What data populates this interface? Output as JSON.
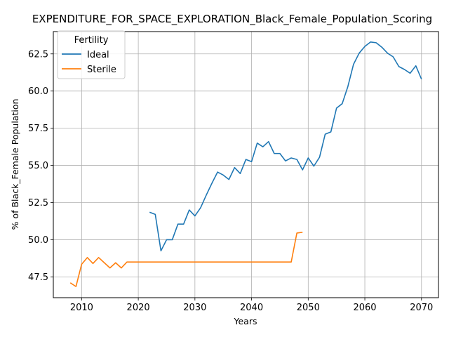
{
  "chart_data": {
    "type": "line",
    "title": "EXPENDITURE_FOR_SPACE_EXPLORATION_Black_Female_Population_Scoring",
    "xlabel": "Years",
    "ylabel": "% of Black_Female Population",
    "xlim": [
      2005,
      2073
    ],
    "ylim": [
      46.1,
      64.0
    ],
    "xticks": [
      2010,
      2020,
      2030,
      2040,
      2050,
      2060,
      2070
    ],
    "yticks": [
      47.5,
      50.0,
      52.5,
      55.0,
      57.5,
      60.0,
      62.5
    ],
    "xtick_labels": [
      "2010",
      "2020",
      "2030",
      "2040",
      "2050",
      "2060",
      "2070"
    ],
    "ytick_labels": [
      "47.5",
      "50.0",
      "52.5",
      "55.0",
      "57.5",
      "60.0",
      "62.5"
    ],
    "grid": true,
    "legend": {
      "title": "Fertility",
      "position": "top-left"
    },
    "series": [
      {
        "name": "Ideal",
        "color": "#1f77b4",
        "x": [
          2022,
          2023,
          2024,
          2025,
          2026,
          2027,
          2028,
          2029,
          2030,
          2031,
          2032,
          2033,
          2034,
          2035,
          2036,
          2037,
          2038,
          2039,
          2040,
          2041,
          2042,
          2043,
          2044,
          2045,
          2046,
          2047,
          2048,
          2049,
          2050,
          2051,
          2052,
          2053,
          2054,
          2055,
          2056,
          2057,
          2058,
          2059,
          2060,
          2061,
          2062,
          2063,
          2064,
          2065,
          2066,
          2067,
          2068,
          2069,
          2070
        ],
        "y": [
          51.85,
          51.7,
          49.25,
          50.0,
          50.0,
          51.05,
          51.05,
          52.0,
          51.6,
          52.15,
          53.0,
          53.8,
          54.55,
          54.35,
          54.05,
          54.85,
          54.45,
          55.4,
          55.25,
          56.5,
          56.25,
          56.6,
          55.8,
          55.8,
          55.3,
          55.5,
          55.4,
          54.7,
          55.5,
          54.95,
          55.55,
          57.1,
          57.25,
          58.85,
          59.15,
          60.3,
          61.8,
          62.55,
          63.0,
          63.3,
          63.25,
          62.95,
          62.55,
          62.3,
          61.65,
          61.45,
          61.2,
          61.7,
          60.8
        ]
      },
      {
        "name": "Sterile",
        "color": "#ff7f0e",
        "x": [
          2008,
          2009,
          2010,
          2011,
          2012,
          2013,
          2014,
          2015,
          2016,
          2017,
          2018,
          2019,
          2020,
          2021,
          2022,
          2023,
          2024,
          2025,
          2026,
          2027,
          2028,
          2029,
          2030,
          2031,
          2032,
          2033,
          2034,
          2035,
          2036,
          2037,
          2038,
          2039,
          2040,
          2041,
          2042,
          2043,
          2044,
          2045,
          2046,
          2047,
          2048,
          2049
        ],
        "y": [
          47.1,
          46.85,
          48.35,
          48.8,
          48.4,
          48.8,
          48.45,
          48.1,
          48.45,
          48.1,
          48.5,
          48.5,
          48.5,
          48.5,
          48.5,
          48.5,
          48.5,
          48.5,
          48.5,
          48.5,
          48.5,
          48.5,
          48.5,
          48.5,
          48.5,
          48.5,
          48.5,
          48.5,
          48.5,
          48.5,
          48.5,
          48.5,
          48.5,
          48.5,
          48.5,
          48.5,
          48.5,
          48.5,
          48.5,
          48.5,
          50.45,
          50.5
        ]
      }
    ]
  }
}
